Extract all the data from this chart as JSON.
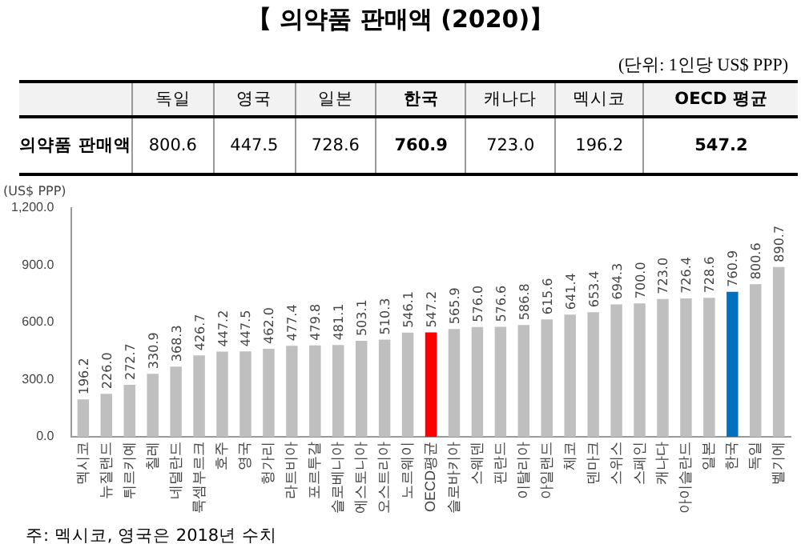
{
  "chart_data": {
    "type": "bar",
    "title": "【 의약품 판매액 (2020)】",
    "ylabel": "(US$ PPP)",
    "categories": [
      "멕시코",
      "뉴질랜드",
      "튀르키예",
      "칠레",
      "네덜란드",
      "룩셈부르크",
      "호주",
      "영국",
      "헝가리",
      "라트비아",
      "포르투갈",
      "슬로베니아",
      "에스토니아",
      "오스트리아",
      "노르웨이",
      "OECD평균",
      "슬로바키아",
      "스웨덴",
      "핀란드",
      "이탈리아",
      "아일랜드",
      "체코",
      "덴마크",
      "스위스",
      "스페인",
      "캐나다",
      "아이슬란드",
      "일본",
      "한국",
      "독일",
      "벨기에"
    ],
    "values": [
      196.2,
      226.0,
      272.7,
      330.9,
      368.3,
      426.7,
      447.2,
      447.5,
      462.0,
      477.4,
      479.8,
      481.1,
      503.1,
      510.3,
      546.1,
      547.2,
      565.9,
      576.0,
      576.6,
      586.8,
      615.6,
      641.4,
      653.4,
      694.3,
      700.0,
      723.0,
      726.4,
      728.6,
      760.9,
      800.6,
      890.7
    ],
    "colors": [
      "#bfbfbf",
      "#bfbfbf",
      "#bfbfbf",
      "#bfbfbf",
      "#bfbfbf",
      "#bfbfbf",
      "#bfbfbf",
      "#bfbfbf",
      "#bfbfbf",
      "#bfbfbf",
      "#bfbfbf",
      "#bfbfbf",
      "#bfbfbf",
      "#bfbfbf",
      "#bfbfbf",
      "#ff0000",
      "#bfbfbf",
      "#bfbfbf",
      "#bfbfbf",
      "#bfbfbf",
      "#bfbfbf",
      "#bfbfbf",
      "#bfbfbf",
      "#bfbfbf",
      "#bfbfbf",
      "#bfbfbf",
      "#bfbfbf",
      "#bfbfbf",
      "#0070c0",
      "#bfbfbf",
      "#bfbfbf"
    ],
    "ylim": [
      0,
      1200
    ],
    "yticks": [
      {
        "value": 0,
        "label": "0.0"
      },
      {
        "value": 300,
        "label": "300.0"
      },
      {
        "value": 600,
        "label": "600.0"
      },
      {
        "value": 900,
        "label": "900.0"
      },
      {
        "value": 1200,
        "label": "1,200.0"
      }
    ],
    "grid": false,
    "value_labels": [
      "196.2",
      "226.0",
      "272.7",
      "330.9",
      "368.3",
      "426.7",
      "447.2",
      "447.5",
      "462.0",
      "477.4",
      "479.8",
      "481.1",
      "503.1",
      "510.3",
      "546.1",
      "547.2",
      "565.9",
      "576.0",
      "576.6",
      "586.8",
      "615.6",
      "641.4",
      "653.4",
      "694.3",
      "700.0",
      "723.0",
      "726.4",
      "728.6",
      "760.9",
      "800.6",
      "890.7"
    ],
    "annotations": [
      "(단위: 1인당 US$ PPP)",
      "의약품 판매액",
      "독일",
      "영국",
      "일본",
      "한국",
      "캐나다",
      "멕시코",
      "OECD 평균",
      "800.6",
      "447.5",
      "728.6",
      "760.9",
      "723.0",
      "196.2",
      "547.2",
      "주: 멕시코, 영국은 2018년 수치"
    ]
  }
}
